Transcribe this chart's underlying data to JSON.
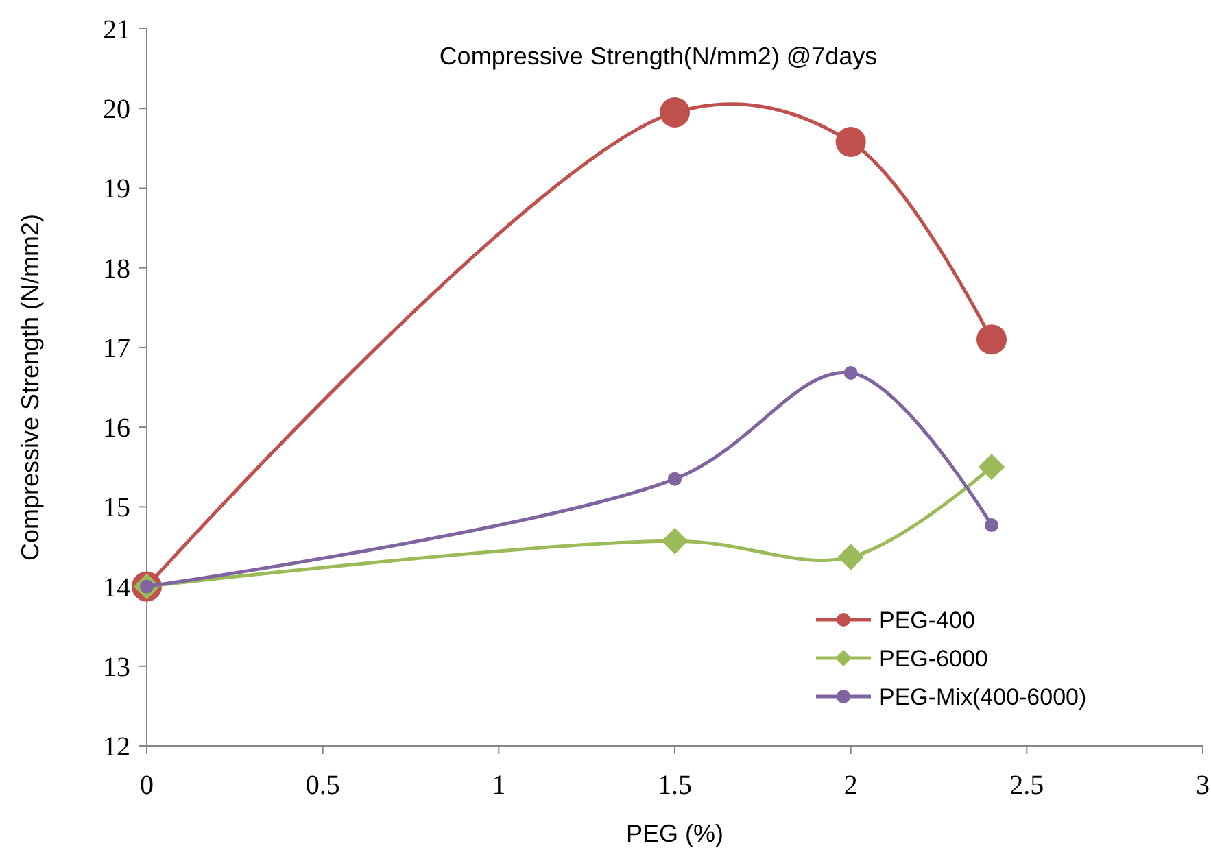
{
  "chart_data": {
    "type": "line",
    "title": "Compressive Strength(N/mm2) @7days",
    "xlabel": "PEG (%)",
    "ylabel": "Compressive Strength (N/mm2)",
    "x": [
      0,
      1.5,
      2,
      2.4
    ],
    "series": [
      {
        "name": "PEG-400",
        "color": "#c0504d",
        "marker": "circle",
        "values": [
          14,
          19.95,
          19.58,
          17.1
        ]
      },
      {
        "name": "PEG-6000",
        "color": "#9bbb59",
        "marker": "diamond",
        "values": [
          14,
          14.57,
          14.37,
          15.5
        ]
      },
      {
        "name": "PEG-Mix(400-6000)",
        "color": "#8064a2",
        "marker": "circle",
        "values": [
          14,
          15.35,
          16.68,
          14.77
        ]
      }
    ],
    "xlim": [
      0,
      3
    ],
    "xticks": [
      0,
      0.5,
      1,
      1.5,
      2,
      2.5,
      3
    ],
    "ylim": [
      12,
      21
    ],
    "yticks": [
      12,
      13,
      14,
      15,
      16,
      17,
      18,
      19,
      20,
      21
    ],
    "grid": false,
    "legend": "bottom right"
  }
}
